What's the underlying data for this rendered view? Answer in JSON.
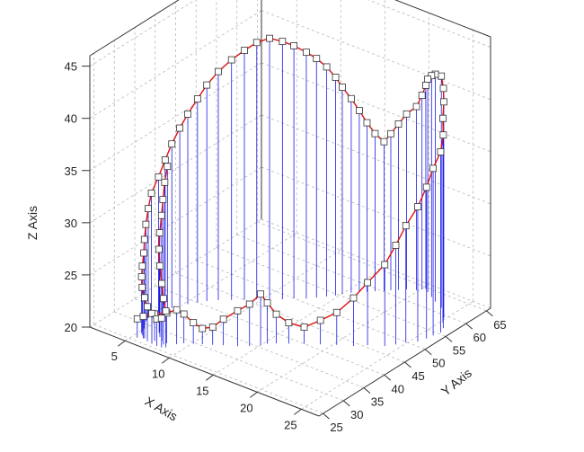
{
  "chart_data": {
    "type": "3d-scatter-line-with-drop-lines",
    "title": "",
    "x_axis": {
      "label": "X Axis",
      "range": [
        1,
        27
      ],
      "ticks": [
        5,
        10,
        15,
        20,
        25
      ]
    },
    "y_axis": {
      "label": "Y Axis",
      "range": [
        24,
        66
      ],
      "ticks": [
        25,
        30,
        35,
        40,
        45,
        50,
        55,
        60,
        65
      ]
    },
    "z_axis": {
      "label": "Z Axis",
      "range": [
        20,
        46
      ],
      "ticks": [
        20,
        25,
        30,
        35,
        40,
        45
      ]
    },
    "grid": true,
    "colors": {
      "drop_lines": "#1a1ae6",
      "curve": "#e01010",
      "markers": "#ffffff"
    },
    "series": [
      {
        "marker": "square",
        "x": [
          5.5,
          6.0,
          7.1,
          8.2,
          9.0,
          9.4,
          10.1,
          10.8,
          11.6,
          12.4,
          13.5,
          14.3,
          15.0,
          15.3,
          15.9,
          16.8,
          17.9,
          19.1,
          20.3,
          21.6,
          22.5,
          23.8,
          24.4,
          24.9,
          25.6,
          25.9,
          26.0,
          26.2,
          25.9,
          25.3,
          24.8,
          24.2,
          23.5,
          22.4,
          21.6,
          20.8,
          20.3,
          20.1,
          19.8,
          19.0,
          18.5,
          18.0,
          17.6,
          17.0,
          16.5,
          16.0,
          15.5,
          15.0,
          14.7,
          14.2,
          13.6,
          13.0,
          12.1,
          11.4,
          10.5,
          9.6,
          8.8,
          7.9,
          7.0,
          6.3,
          5.8,
          5.3,
          4.9,
          4.6,
          4.4,
          4.2,
          4.0,
          4.1,
          4.3,
          4.6,
          4.9,
          5.1,
          5.3,
          5.6,
          6.1,
          6.6,
          7.2,
          7.8,
          8.3,
          8.6,
          8.1,
          7.6,
          7.0,
          6.5,
          6.1,
          5.8,
          5.4,
          5.0,
          4.7
        ],
        "y": [
          25.9,
          26.3,
          26.7,
          27.3,
          28.0,
          28.9,
          29.7,
          30.4,
          31.2,
          32.1,
          33.2,
          34.4,
          35.6,
          36.6,
          37.5,
          38.6,
          40.0,
          41.4,
          42.8,
          44.1,
          45.6,
          47.0,
          48.4,
          49.8,
          51.2,
          52.7,
          54.1,
          55.5,
          56.8,
          58.0,
          59.3,
          60.5,
          61.5,
          62.4,
          63.2,
          64.0,
          64.6,
          64.1,
          63.4,
          62.7,
          61.8,
          61.0,
          60.2,
          59.3,
          58.4,
          57.6,
          56.7,
          55.6,
          54.6,
          53.5,
          52.3,
          51.1,
          50.0,
          48.7,
          47.5,
          46.3,
          45.0,
          43.8,
          42.5,
          41.2,
          40.0,
          38.7,
          37.6,
          36.3,
          35.1,
          33.9,
          32.6,
          31.6,
          30.6,
          29.6,
          28.8,
          28.0,
          27.4,
          26.9,
          26.4,
          26.0,
          25.8,
          25.7,
          25.8,
          26.2,
          26.7,
          27.4,
          28.2,
          29.1,
          30.1,
          31.2,
          32.4,
          33.7,
          35.0
        ],
        "z": [
          21.8,
          22.1,
          22.6,
          22.9,
          23.3,
          22.8,
          22.0,
          21.5,
          21.7,
          22.5,
          23.4,
          24.0,
          24.9,
          23.9,
          22.8,
          22.0,
          21.6,
          22.3,
          23.1,
          24.6,
          26.0,
          27.8,
          29.5,
          31.2,
          32.9,
          34.5,
          36.0,
          37.3,
          38.5,
          39.6,
          40.7,
          41.5,
          42.2,
          41.8,
          41.2,
          40.4,
          39.5,
          38.6,
          37.6,
          36.8,
          35.9,
          35.0,
          34.3,
          35.1,
          36.2,
          37.4,
          38.6,
          39.8,
          40.9,
          42.0,
          42.9,
          43.6,
          44.2,
          44.7,
          45.0,
          44.6,
          43.9,
          43.0,
          41.9,
          40.7,
          39.5,
          38.2,
          37.0,
          35.7,
          34.4,
          33.0,
          31.7,
          30.5,
          29.3,
          28.2,
          27.2,
          26.2,
          25.4,
          24.6,
          23.9,
          23.3,
          22.9,
          22.6,
          22.8,
          23.5,
          24.4,
          25.5,
          26.8,
          28.0,
          29.2,
          30.5,
          31.6,
          32.8,
          33.9
        ]
      }
    ]
  }
}
